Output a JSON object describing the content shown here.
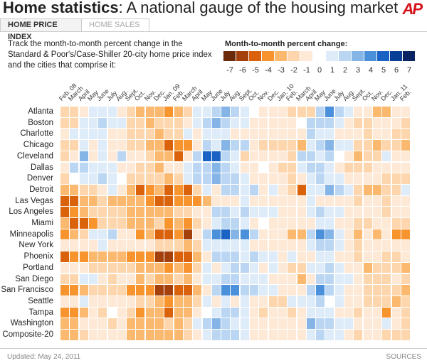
{
  "header": {
    "title_bold": "Home statistics",
    "title_rest": ": A national gauge of the housing market",
    "logo": "AP"
  },
  "tabs": [
    {
      "label": "HOME PRICE INDEX",
      "active": true
    },
    {
      "label": "HOME SALES",
      "active": false
    }
  ],
  "intro": "Track the month-to-month percent change in the Standard & Poor's/Case-Shiller 20-city home price index and the cities that comprise it:",
  "legend": {
    "title": "Month-to-month percent change:",
    "items": [
      {
        "value": -7,
        "color": "#6b2a0a"
      },
      {
        "value": -6,
        "color": "#a4400c"
      },
      {
        "value": -5,
        "color": "#d9620a"
      },
      {
        "value": -4,
        "color": "#f7942e"
      },
      {
        "value": -3,
        "color": "#fbb970"
      },
      {
        "value": -2,
        "color": "#fdd6ad"
      },
      {
        "value": -1,
        "color": "#fde9d6"
      },
      {
        "value": 0,
        "color": "#ffffff"
      },
      {
        "value": 1,
        "color": "#deebf9"
      },
      {
        "value": 2,
        "color": "#bad6f3"
      },
      {
        "value": 3,
        "color": "#85b5e6"
      },
      {
        "value": 4,
        "color": "#4a90db"
      },
      {
        "value": 5,
        "color": "#1a62c4"
      },
      {
        "value": 6,
        "color": "#0a3f98"
      },
      {
        "value": 7,
        "color": "#0a2463"
      }
    ]
  },
  "chart_data": {
    "type": "heatmap",
    "title": "Month-to-month percent change",
    "columns": [
      "Feb. 08",
      "March",
      "April",
      "May",
      "June",
      "July",
      "Aug.",
      "Sept.",
      "Oct.",
      "Nov.",
      "Dec.",
      "Jan. 09",
      "Feb.",
      "March",
      "April",
      "May",
      "June",
      "July",
      "Aug.",
      "Sept.",
      "Oct.",
      "Nov.",
      "Dec.",
      "Jan. 10",
      "Feb.",
      "March",
      "April",
      "May",
      "June",
      "July",
      "Aug.",
      "Sept.",
      "Oct.",
      "Nov.",
      "Dec.",
      "Jan. 11",
      "Feb."
    ],
    "rows": [
      "Atlanta",
      "Boston",
      "Charlotte",
      "Chicago",
      "Cleveland",
      "Dallas",
      "Denver",
      "Detroit",
      "Las Vegas",
      "Los Angeles",
      "Miami",
      "Minneapolis",
      "New York",
      "Phoenix",
      "Portland",
      "San Diego",
      "San Francisco",
      "Seattle",
      "Tampa",
      "Washington",
      "Composite-20"
    ],
    "color_scale": {
      "min": -7,
      "max": 7
    },
    "values": [
      [
        -2,
        -2,
        -1,
        1,
        1,
        1,
        -1,
        -2,
        -3,
        -3,
        -3,
        -4,
        -3,
        -2,
        1,
        1,
        2,
        3,
        2,
        1,
        0,
        -1,
        -1,
        -1,
        -2,
        -2,
        -2,
        2,
        4,
        2,
        1,
        -1,
        -1,
        -3,
        -3,
        -1,
        -1
      ],
      [
        -2,
        -2,
        1,
        1,
        2,
        1,
        1,
        -2,
        -2,
        -3,
        -2,
        -2,
        -2,
        -1,
        1,
        2,
        3,
        2,
        1,
        1,
        -1,
        -1,
        -1,
        -1,
        -1,
        0,
        2,
        2,
        2,
        1,
        -1,
        -2,
        -2,
        -1,
        -1,
        -1,
        -2
      ],
      [
        -1,
        1,
        1,
        1,
        1,
        -1,
        -1,
        -2,
        -2,
        -2,
        -3,
        -2,
        -2,
        1,
        -1,
        1,
        1,
        1,
        -1,
        -1,
        -1,
        -1,
        -1,
        -1,
        -1,
        -1,
        2,
        1,
        1,
        -1,
        -1,
        -1,
        -2,
        -1,
        -1,
        -2,
        -2
      ],
      [
        -2,
        -2,
        1,
        -1,
        1,
        -1,
        -1,
        -2,
        -2,
        -3,
        -3,
        -5,
        -4,
        -4,
        -1,
        2,
        1,
        3,
        2,
        2,
        -1,
        -2,
        -2,
        -2,
        -2,
        -3,
        1,
        2,
        3,
        1,
        1,
        -2,
        -2,
        -3,
        -2,
        -2,
        -3
      ],
      [
        -2,
        -1,
        3,
        -1,
        1,
        -1,
        2,
        -1,
        -1,
        -2,
        -3,
        -3,
        -5,
        -1,
        2,
        5,
        5,
        2,
        1,
        -2,
        -1,
        -1,
        -1,
        -1,
        -2,
        2,
        2,
        1,
        2,
        0,
        -1,
        -3,
        -2,
        -2,
        1,
        -1,
        -1
      ],
      [
        -1,
        2,
        2,
        1,
        1,
        1,
        -1,
        -1,
        -2,
        -2,
        -3,
        -1,
        -1,
        1,
        2,
        2,
        3,
        2,
        1,
        -1,
        -1,
        0,
        -1,
        -2,
        -2,
        1,
        2,
        2,
        1,
        -1,
        -2,
        -2,
        -2,
        -1,
        -1,
        -1,
        -1
      ],
      [
        -2,
        0,
        1,
        1,
        2,
        1,
        0,
        -2,
        -2,
        -2,
        -2,
        -3,
        -2,
        1,
        2,
        2,
        3,
        2,
        2,
        1,
        -1,
        -1,
        -1,
        -1,
        -2,
        -1,
        1,
        2,
        1,
        1,
        -1,
        -1,
        -1,
        -1,
        -2,
        -2,
        -2
      ],
      [
        -3,
        -3,
        -2,
        -2,
        -1,
        1,
        -1,
        -3,
        -5,
        -4,
        -3,
        -5,
        -4,
        -5,
        -2,
        1,
        -1,
        2,
        2,
        1,
        2,
        -1,
        1,
        -1,
        -2,
        -5,
        1,
        1,
        3,
        2,
        1,
        -2,
        -3,
        -3,
        -2,
        -2,
        1
      ],
      [
        -5,
        -5,
        -3,
        -3,
        -2,
        -3,
        -3,
        -3,
        -3,
        -4,
        -5,
        -5,
        -4,
        -4,
        -4,
        -3,
        -1,
        -1,
        -1,
        1,
        -1,
        -1,
        -1,
        -1,
        -1,
        -1,
        1,
        -1,
        -1,
        -1,
        -1,
        -2,
        -1,
        -1,
        -2,
        -1,
        -1
      ],
      [
        -5,
        -4,
        -3,
        -2,
        -2,
        -2,
        -2,
        -3,
        -3,
        -3,
        -3,
        -3,
        -2,
        -2,
        -1,
        -1,
        2,
        2,
        1,
        2,
        1,
        1,
        1,
        -1,
        -1,
        -1,
        1,
        2,
        1,
        1,
        -1,
        -1,
        -1,
        -1,
        -2,
        -1,
        -1
      ],
      [
        -3,
        -5,
        -5,
        -4,
        -2,
        -2,
        -2,
        -3,
        -3,
        -3,
        -2,
        -4,
        -3,
        -4,
        -2,
        -1,
        1,
        2,
        2,
        1,
        -1,
        0,
        -1,
        -1,
        -1,
        -1,
        -1,
        1,
        1,
        -1,
        -1,
        -2,
        -2,
        -1,
        -1,
        -2,
        -2
      ],
      [
        -4,
        -3,
        -2,
        1,
        1,
        2,
        -1,
        -1,
        -4,
        -3,
        -5,
        -5,
        -4,
        -6,
        -1,
        2,
        4,
        5,
        3,
        4,
        2,
        -1,
        -1,
        -1,
        -3,
        -3,
        2,
        4,
        3,
        1,
        -1,
        -3,
        -1,
        -3,
        -1,
        -4,
        -4
      ],
      [
        -1,
        -1,
        -1,
        -1,
        1,
        -1,
        -1,
        -1,
        -1,
        -1,
        -2,
        -2,
        -2,
        -3,
        -2,
        1,
        1,
        1,
        1,
        1,
        -1,
        -1,
        -1,
        -1,
        -1,
        -1,
        1,
        2,
        2,
        1,
        -1,
        -2,
        -1,
        -1,
        -1,
        -1,
        -1
      ],
      [
        -5,
        -4,
        -4,
        -3,
        -3,
        -3,
        -3,
        -4,
        -4,
        -4,
        -6,
        -6,
        -5,
        -5,
        -3,
        -1,
        2,
        2,
        2,
        1,
        2,
        1,
        1,
        -1,
        1,
        -1,
        -1,
        1,
        1,
        -1,
        -1,
        -2,
        -1,
        -1,
        -2,
        -2,
        -1
      ],
      [
        -1,
        -1,
        -1,
        -2,
        -2,
        -2,
        -2,
        -2,
        -3,
        -3,
        -3,
        -4,
        -3,
        -4,
        -2,
        1,
        -1,
        1,
        2,
        2,
        1,
        -1,
        1,
        -1,
        -2,
        -2,
        1,
        1,
        2,
        1,
        -1,
        -1,
        -3,
        -2,
        -2,
        -2,
        -3
      ],
      [
        -2,
        -2,
        1,
        1,
        -1,
        -2,
        -1,
        -1,
        -3,
        -2,
        -3,
        -3,
        -2,
        -3,
        -1,
        1,
        1,
        2,
        2,
        1,
        1,
        1,
        -1,
        -1,
        -1,
        -3,
        -1,
        2,
        2,
        1,
        1,
        -1,
        -2,
        -2,
        -2,
        -1,
        -2
      ],
      [
        -4,
        -4,
        -3,
        -2,
        -2,
        -2,
        -2,
        -4,
        -4,
        -4,
        -6,
        -6,
        -5,
        -5,
        -3,
        -1,
        2,
        4,
        4,
        2,
        2,
        1,
        1,
        -1,
        -1,
        -1,
        2,
        4,
        2,
        1,
        -1,
        -1,
        -2,
        -2,
        -2,
        -2,
        -3
      ],
      [
        -1,
        -1,
        1,
        -1,
        -1,
        -1,
        -1,
        -1,
        -2,
        -2,
        -3,
        -4,
        -3,
        -3,
        -2,
        1,
        -1,
        1,
        -1,
        1,
        -1,
        -1,
        -2,
        -2,
        1,
        1,
        1,
        2,
        0,
        1,
        -1,
        -1,
        -2,
        -2,
        -2,
        -3,
        -2
      ],
      [
        -4,
        -4,
        -3,
        -1,
        -2,
        0,
        -1,
        -2,
        -4,
        -3,
        -3,
        -5,
        -3,
        -3,
        -1,
        0,
        1,
        2,
        2,
        1,
        -1,
        -2,
        -1,
        -1,
        -2,
        -1,
        1,
        1,
        1,
        -1,
        -1,
        -2,
        -1,
        -1,
        -4,
        -1,
        -2
      ],
      [
        -3,
        -3,
        -1,
        -1,
        -1,
        -2,
        -1,
        -3,
        -3,
        -3,
        -3,
        -2,
        -3,
        -2,
        1,
        2,
        3,
        2,
        1,
        1,
        -1,
        -1,
        -1,
        -1,
        -1,
        -1,
        3,
        2,
        2,
        1,
        1,
        -1,
        -1,
        -1,
        1,
        -1,
        -2
      ],
      [
        -3,
        -3,
        -2,
        -1,
        -1,
        -1,
        -1,
        -3,
        -3,
        -3,
        -3,
        -3,
        -3,
        -2,
        -1,
        1,
        2,
        2,
        2,
        1,
        -1,
        -1,
        -1,
        -1,
        -1,
        -1,
        1,
        2,
        1,
        1,
        -1,
        -2,
        -1,
        -1,
        -2,
        -2,
        -2
      ]
    ]
  },
  "footer": {
    "updated": "Updated: May 24, 2011",
    "sources": "SOURCES"
  }
}
